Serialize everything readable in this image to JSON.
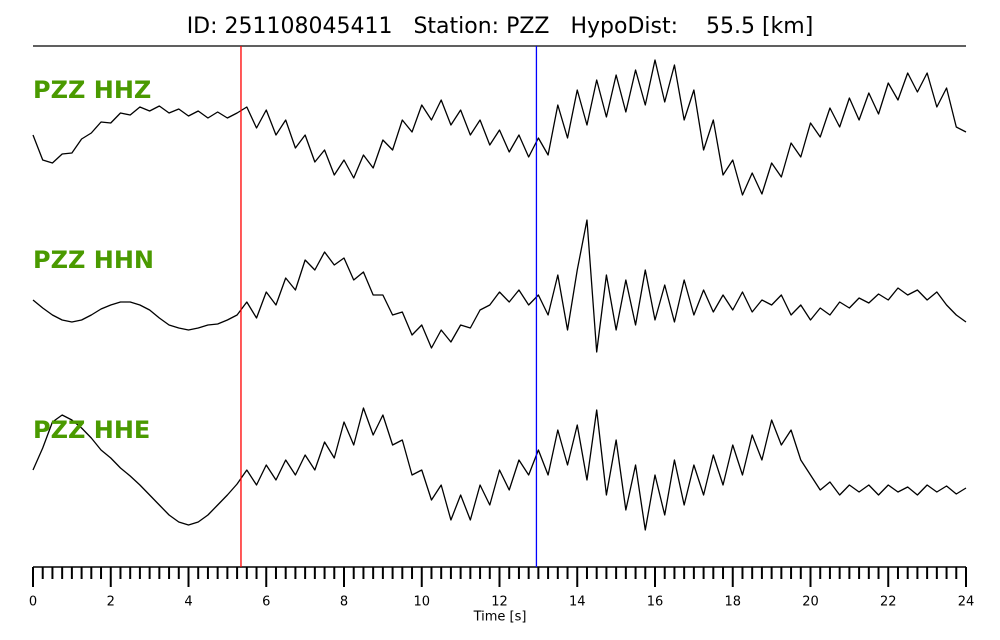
{
  "chart_data": {
    "type": "line",
    "title": "ID: 251108045411   Station: PZZ   HypoDist:    55.5 [km]",
    "xlabel": "Time [s]",
    "xlim": [
      0,
      24
    ],
    "xticks": [
      0,
      2,
      4,
      6,
      8,
      10,
      12,
      14,
      16,
      18,
      20,
      22,
      24
    ],
    "xminorticks": [
      0.25,
      0.5,
      0.75,
      1,
      1.25,
      1.5,
      1.75,
      2.25,
      2.5,
      2.75,
      3,
      3.25,
      3.5,
      3.75,
      4.25,
      4.5,
      4.75,
      5,
      5.25,
      5.5,
      5.75,
      6.25,
      6.5,
      6.75,
      7,
      7.25,
      7.5,
      7.75,
      8.25,
      8.5,
      8.75,
      9,
      9.25,
      9.5,
      9.75,
      10.25,
      10.5,
      10.75,
      11,
      11.25,
      11.5,
      11.75,
      12.25,
      12.5,
      12.75,
      13,
      13.25,
      13.5,
      13.75,
      14.25,
      14.5,
      14.75,
      15,
      15.25,
      15.5,
      15.75,
      16.25,
      16.5,
      16.75,
      17,
      17.25,
      17.5,
      17.75,
      18.25,
      18.5,
      18.75,
      19,
      19.25,
      19.5,
      19.75,
      20.25,
      20.5,
      20.75,
      21,
      21.25,
      21.5,
      21.75,
      22.25,
      22.5,
      22.75,
      23,
      23.25,
      23.5,
      23.75
    ],
    "label_color": "#4a9a00",
    "ylim": [
      -85,
      85
    ],
    "x": [
      0,
      0.25,
      0.5,
      0.75,
      1,
      1.25,
      1.5,
      1.75,
      2,
      2.25,
      2.5,
      2.75,
      3,
      3.25,
      3.5,
      3.75,
      4,
      4.25,
      4.5,
      4.75,
      5,
      5.25,
      5.5,
      5.75,
      6,
      6.25,
      6.5,
      6.75,
      7,
      7.25,
      7.5,
      7.75,
      8,
      8.25,
      8.5,
      8.75,
      9,
      9.25,
      9.5,
      9.75,
      10,
      10.25,
      10.5,
      10.75,
      11,
      11.25,
      11.5,
      11.75,
      12,
      12.25,
      12.5,
      12.75,
      13,
      13.25,
      13.5,
      13.75,
      14,
      14.25,
      14.5,
      14.75,
      15,
      15.25,
      15.5,
      15.75,
      16,
      16.25,
      16.5,
      16.75,
      17,
      17.25,
      17.5,
      17.75,
      18,
      18.25,
      18.5,
      18.75,
      19,
      19.25,
      19.5,
      19.75,
      20,
      20.25,
      20.5,
      20.75,
      21,
      21.25,
      21.5,
      21.75,
      22,
      22.25,
      22.5,
      22.75,
      23,
      23.25,
      23.5,
      23.75,
      24
    ],
    "series": [
      {
        "name": "PZZ HHZ",
        "color": "#000000",
        "values": [
          -5,
          -30,
          -33,
          -24,
          -23,
          -9,
          -3,
          8,
          7,
          17,
          15,
          23,
          19,
          24,
          17,
          21,
          14,
          19,
          12,
          18,
          12,
          17,
          23,
          2,
          20,
          -5,
          10,
          -18,
          -5,
          -32,
          -20,
          -45,
          -30,
          -48,
          -25,
          -38,
          -10,
          -20,
          10,
          -2,
          25,
          10,
          30,
          5,
          20,
          -5,
          10,
          -15,
          0,
          -22,
          -5,
          -27,
          -8,
          -25,
          25,
          -8,
          40,
          5,
          50,
          13,
          55,
          18,
          60,
          25,
          70,
          28,
          65,
          10,
          40,
          -20,
          10,
          -45,
          -30,
          -65,
          -43,
          -64,
          -33,
          -47,
          -13,
          -27,
          7,
          -7,
          22,
          3,
          32,
          10,
          37,
          16,
          47,
          30,
          57,
          38,
          57,
          23,
          42,
          3,
          -2
        ]
      },
      {
        "name": "PZZ HHN",
        "color": "#000000",
        "values": [
          0,
          -8,
          -15,
          -20,
          -22,
          -20,
          -15,
          -9,
          -5,
          -2,
          -2,
          -5,
          -10,
          -18,
          -25,
          -28,
          -30,
          -28,
          -25,
          -24,
          -20,
          -15,
          -2,
          -18,
          8,
          -5,
          22,
          10,
          40,
          30,
          48,
          35,
          42,
          20,
          28,
          5,
          5,
          -15,
          -12,
          -35,
          -25,
          -48,
          -30,
          -42,
          -25,
          -28,
          -10,
          -5,
          8,
          -2,
          10,
          -5,
          5,
          -15,
          25,
          -30,
          30,
          80,
          -52,
          25,
          -30,
          20,
          -25,
          30,
          -20,
          15,
          -22,
          20,
          -15,
          10,
          -12,
          5,
          -10,
          8,
          -12,
          0,
          -5,
          5,
          -15,
          -5,
          -20,
          -8,
          -15,
          -2,
          -8,
          2,
          -3,
          6,
          0,
          12,
          5,
          10,
          0,
          8,
          -5,
          -15,
          -22
        ]
      },
      {
        "name": "PZZ HHE",
        "color": "#000000",
        "values": [
          0,
          22,
          48,
          55,
          50,
          42,
          32,
          20,
          12,
          2,
          -6,
          -15,
          -25,
          -35,
          -45,
          -52,
          -55,
          -52,
          -45,
          -35,
          -25,
          -14,
          0,
          -15,
          5,
          -10,
          10,
          -5,
          15,
          0,
          28,
          12,
          48,
          25,
          62,
          35,
          55,
          25,
          30,
          -5,
          0,
          -30,
          -15,
          -50,
          -25,
          -50,
          -15,
          -35,
          0,
          -20,
          10,
          -5,
          20,
          -5,
          40,
          5,
          45,
          -10,
          60,
          -25,
          30,
          -40,
          5,
          -60,
          -5,
          -45,
          10,
          -35,
          5,
          -25,
          15,
          -15,
          25,
          -5,
          35,
          10,
          50,
          25,
          40,
          10,
          -5,
          -20,
          -12,
          -25,
          -15,
          -22,
          -15,
          -25,
          -15,
          -22,
          -17,
          -25,
          -15,
          -22,
          -16,
          -24,
          -18
        ]
      }
    ],
    "picks": [
      {
        "x": 5.35,
        "color": "#ff0000"
      },
      {
        "x": 12.95,
        "color": "#0000ff"
      }
    ]
  }
}
